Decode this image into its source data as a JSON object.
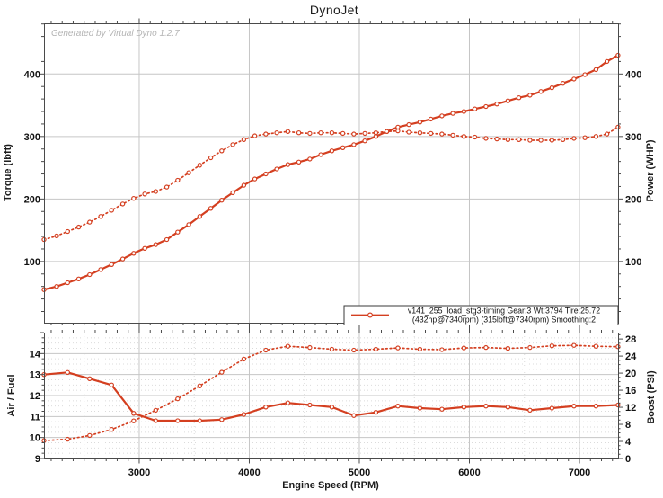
{
  "title": "DynoJet",
  "watermark": "Generated by Virtual Dyno 1.2.7",
  "colors": {
    "curve": "#d43f20",
    "grid_major": "#c6c6c6",
    "grid_minor": "#dbdbdb",
    "frame": "#4a4a4a",
    "tick": "#4a4a4a",
    "text": "#111111",
    "watermark": "#b4b4b4",
    "legend_border": "#3a3a3a"
  },
  "chart_data": [
    {
      "type": "line",
      "title": "DynoJet",
      "x_axis": {
        "range": [
          2135,
          7351
        ],
        "major_ticks": [
          3000,
          4000,
          5000,
          6000,
          7000
        ],
        "minor_step": 100,
        "labels_shown": false
      },
      "left_axis": {
        "label": "Torque (lbft)",
        "ticks": [
          100,
          200,
          300,
          400
        ],
        "minor_step": 20
      },
      "right_axis": {
        "label": "Power (WHP)",
        "ticks": [
          100,
          200,
          300,
          400
        ],
        "minor_step": 20
      },
      "legend": [
        "v141_255_load_stg3-timing Gear:3 Wt:3794 Tire:25.72",
        "(432hp@7340rpm) (315lbft@7340rpm) Smoothing:2"
      ],
      "series": [
        {
          "name": "torque_lbft",
          "style": "dotted",
          "axis": "left",
          "x": [
            2135,
            2250,
            2350,
            2450,
            2550,
            2650,
            2750,
            2850,
            2950,
            3050,
            3150,
            3250,
            3350,
            3450,
            3550,
            3650,
            3750,
            3850,
            3950,
            4050,
            4150,
            4250,
            4350,
            4450,
            4550,
            4650,
            4750,
            4850,
            4950,
            5050,
            5150,
            5250,
            5350,
            5450,
            5550,
            5650,
            5750,
            5850,
            5950,
            6050,
            6150,
            6250,
            6350,
            6450,
            6550,
            6650,
            6750,
            6850,
            6950,
            7050,
            7150,
            7250,
            7350
          ],
          "values": [
            135,
            141,
            148,
            155,
            163,
            172,
            182,
            192,
            201,
            208,
            212,
            219,
            230,
            242,
            254,
            266,
            277,
            287,
            295,
            301,
            304,
            306,
            308,
            306,
            305,
            306,
            306,
            305,
            304,
            305,
            306,
            308,
            309,
            307,
            306,
            305,
            304,
            302,
            300,
            299,
            297,
            296,
            295,
            295,
            294,
            294,
            294,
            295,
            297,
            298,
            300,
            304,
            315
          ]
        },
        {
          "name": "power_whp",
          "style": "solid",
          "axis": "right",
          "x": [
            2135,
            2250,
            2350,
            2450,
            2550,
            2650,
            2750,
            2850,
            2950,
            3050,
            3150,
            3250,
            3350,
            3450,
            3550,
            3650,
            3750,
            3850,
            3950,
            4050,
            4150,
            4250,
            4350,
            4450,
            4550,
            4650,
            4750,
            4850,
            4950,
            5050,
            5150,
            5250,
            5350,
            5450,
            5550,
            5650,
            5750,
            5850,
            5950,
            6050,
            6150,
            6250,
            6350,
            6450,
            6550,
            6650,
            6750,
            6850,
            6950,
            7050,
            7150,
            7250,
            7350
          ],
          "values": [
            55,
            60,
            66,
            72,
            79,
            87,
            95,
            104,
            113,
            121,
            127,
            135,
            147,
            159,
            172,
            185,
            198,
            210,
            222,
            232,
            240,
            248,
            255,
            259,
            264,
            271,
            277,
            282,
            287,
            293,
            300,
            308,
            315,
            319,
            323,
            328,
            333,
            337,
            340,
            344,
            348,
            352,
            357,
            362,
            366,
            372,
            378,
            385,
            392,
            399,
            407,
            420,
            430
          ]
        }
      ]
    },
    {
      "type": "line",
      "xlabel": "Engine Speed (RPM)",
      "x_axis": {
        "range": [
          2135,
          7351
        ],
        "major_ticks": [
          3000,
          4000,
          5000,
          6000,
          7000
        ],
        "minor_step": 100,
        "labels_shown": true
      },
      "left_axis": {
        "label": "Air / Fuel",
        "range": [
          9,
          15
        ],
        "ticks": [
          9,
          10,
          11,
          12,
          13,
          14
        ],
        "minor_step": 0.25
      },
      "right_axis": {
        "label": "Boost (PSI)",
        "range": [
          0,
          29.5
        ],
        "ticks": [
          0,
          4,
          8,
          12,
          16,
          20,
          24,
          28
        ],
        "minor_step": 1
      },
      "series": [
        {
          "name": "air_fuel",
          "style": "solid",
          "axis": "left",
          "x": [
            2135,
            2350,
            2550,
            2750,
            2950,
            3150,
            3350,
            3550,
            3750,
            3950,
            4150,
            4350,
            4550,
            4750,
            4950,
            5150,
            5350,
            5550,
            5750,
            5950,
            6150,
            6350,
            6550,
            6750,
            6950,
            7150,
            7350
          ],
          "values": [
            13.0,
            13.1,
            12.8,
            12.5,
            11.15,
            10.8,
            10.8,
            10.8,
            10.85,
            11.1,
            11.45,
            11.65,
            11.55,
            11.45,
            11.05,
            11.2,
            11.5,
            11.4,
            11.35,
            11.45,
            11.5,
            11.45,
            11.3,
            11.4,
            11.5,
            11.5,
            11.55
          ]
        },
        {
          "name": "boost_psi",
          "style": "dotted",
          "axis": "right",
          "x": [
            2135,
            2350,
            2550,
            2750,
            2950,
            3150,
            3350,
            3550,
            3750,
            3950,
            4150,
            4350,
            4550,
            4750,
            4950,
            5150,
            5350,
            5550,
            5750,
            5950,
            6150,
            6350,
            6550,
            6750,
            6950,
            7150,
            7350
          ],
          "values": [
            4.2,
            4.5,
            5.4,
            6.8,
            8.8,
            11.3,
            14.0,
            17.0,
            20.2,
            23.3,
            25.4,
            26.3,
            26.0,
            25.6,
            25.4,
            25.6,
            25.9,
            25.6,
            25.5,
            25.9,
            26.0,
            25.8,
            26.0,
            26.4,
            26.5,
            26.3,
            26.2
          ]
        }
      ]
    }
  ]
}
